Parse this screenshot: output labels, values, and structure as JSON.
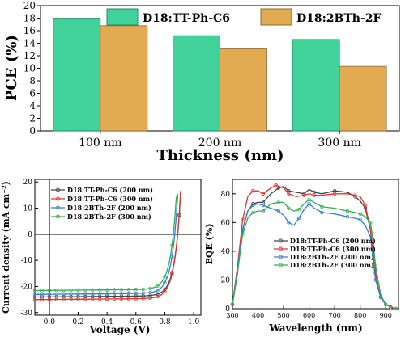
{
  "chart_data": [
    {
      "type": "bar",
      "title": "",
      "categories": [
        "100 nm",
        "200 nm",
        "300 nm"
      ],
      "series": [
        {
          "name": "D18:TT-Ph-C6",
          "values": [
            18.0,
            15.2,
            14.6
          ],
          "color": "#3fd29a"
        },
        {
          "name": "D18:2BTh-2F",
          "values": [
            16.8,
            13.1,
            10.3
          ],
          "color": "#e2ab52"
        }
      ],
      "xlabel": "Thickness (nm)",
      "ylabel": "PCE (%)",
      "ylim": [
        0,
        20
      ],
      "yticks": [
        "0",
        "2",
        "4",
        "6",
        "8",
        "10",
        "12",
        "14",
        "16",
        "18",
        "20"
      ],
      "legend": "top",
      "grid": false
    },
    {
      "type": "line",
      "title": "",
      "xlabel": "Voltage (V)",
      "ylabel": "Current density (mA cm⁻²)",
      "xlim": [
        -0.1,
        1.05
      ],
      "ylim": [
        -31,
        21
      ],
      "xticks": [
        "0.0",
        "0.2",
        "0.4",
        "0.6",
        "0.8",
        "1.0"
      ],
      "yticks": [
        "-30",
        "-20",
        "-10",
        "0",
        "10",
        "20"
      ],
      "legend": "top-left",
      "series": [
        {
          "name": "D18:TT-Ph-C6 (200 nm)",
          "color": "#444444",
          "jsc": -24.0,
          "voc": 0.89
        },
        {
          "name": "D18:TT-Ph-C6 (300 nm)",
          "color": "#e8312a",
          "jsc": -25.0,
          "voc": 0.89
        },
        {
          "name": "D18:2BTh-2F  (200 nm)",
          "color": "#2d7fd8",
          "jsc": -23.0,
          "voc": 0.87
        },
        {
          "name": "D18:2BTh-2F   (300 nm)",
          "color": "#2fae55",
          "jsc": -21.5,
          "voc": 0.86
        }
      ]
    },
    {
      "type": "line",
      "title": "",
      "xlabel": "Wavelength (nm)",
      "ylabel": "EQE (%)",
      "xlim": [
        300,
        950
      ],
      "ylim": [
        0,
        90
      ],
      "xticks": [
        "300",
        "400",
        "500",
        "600",
        "700",
        "800",
        "900"
      ],
      "yticks": [
        "0",
        "20",
        "40",
        "60",
        "80"
      ],
      "legend": "bottom-center",
      "series": [
        {
          "name": "D18:TT-Ph-C6 (200 nm)",
          "color": "#444444",
          "x": [
            300,
            320,
            340,
            360,
            380,
            400,
            420,
            450,
            480,
            500,
            520,
            550,
            580,
            600,
            620,
            650,
            700,
            750,
            780,
            800,
            820,
            840,
            860,
            870,
            880,
            900,
            920,
            940
          ],
          "y": [
            3,
            25,
            55,
            68,
            73,
            74,
            74,
            80,
            84,
            85,
            82,
            81,
            80,
            83,
            81,
            80,
            82,
            81,
            78,
            75,
            70,
            55,
            25,
            15,
            8,
            3,
            1,
            0
          ]
        },
        {
          "name": "D18:TT-Ph-C6 (300 nm)",
          "color": "#e8312a",
          "x": [
            300,
            320,
            340,
            360,
            380,
            400,
            420,
            450,
            470,
            500,
            520,
            550,
            580,
            600,
            620,
            650,
            700,
            750,
            780,
            800,
            820,
            840,
            860,
            870,
            880,
            900,
            920,
            940
          ],
          "y": [
            3,
            30,
            62,
            78,
            82,
            82,
            80,
            84,
            86,
            84,
            80,
            78,
            79,
            80,
            79,
            79,
            80,
            80,
            79,
            78,
            72,
            55,
            25,
            15,
            8,
            3,
            1,
            0
          ]
        },
        {
          "name": "D18:2BTh-2F  (200 nm)",
          "color": "#2d7fd8",
          "x": [
            300,
            320,
            340,
            360,
            380,
            400,
            420,
            450,
            480,
            500,
            520,
            540,
            560,
            580,
            600,
            620,
            650,
            700,
            750,
            780,
            800,
            820,
            840,
            850,
            860,
            880,
            900,
            920,
            940
          ],
          "y": [
            3,
            28,
            55,
            68,
            72,
            73,
            72,
            70,
            68,
            65,
            60,
            58,
            63,
            69,
            73,
            70,
            67,
            66,
            64,
            63,
            62,
            58,
            50,
            35,
            20,
            8,
            3,
            1,
            0
          ]
        },
        {
          "name": "D18:2BTh-2F   (300 nm)",
          "color": "#2fae55",
          "x": [
            300,
            320,
            340,
            360,
            380,
            400,
            420,
            450,
            480,
            500,
            520,
            540,
            560,
            580,
            600,
            620,
            650,
            700,
            750,
            780,
            800,
            820,
            840,
            850,
            860,
            880,
            900,
            920,
            940
          ],
          "y": [
            3,
            26,
            52,
            63,
            67,
            68,
            68,
            73,
            74,
            74,
            70,
            68,
            69,
            73,
            76,
            74,
            71,
            70,
            68,
            67,
            66,
            64,
            60,
            48,
            30,
            10,
            3,
            1,
            0
          ]
        }
      ]
    }
  ]
}
